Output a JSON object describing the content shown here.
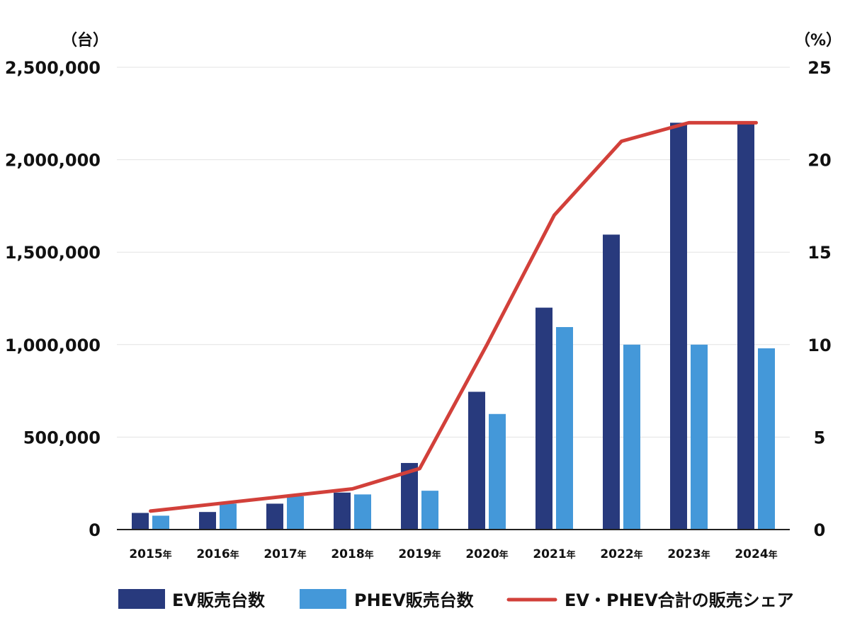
{
  "chart_data": {
    "type": "bar",
    "categories": [
      "2015",
      "2016",
      "2017",
      "2018",
      "2019",
      "2020",
      "2021",
      "2022",
      "2023",
      "2024"
    ],
    "category_suffix": "年",
    "series": [
      {
        "name": "EV販売台数",
        "kind": "bar",
        "axis": "left",
        "color": "#283a7d",
        "values": [
          90000,
          95000,
          140000,
          200000,
          360000,
          745000,
          1200000,
          1595000,
          2200000,
          2200000
        ]
      },
      {
        "name": "PHEV販売台数",
        "kind": "bar",
        "axis": "left",
        "color": "#4498d9",
        "values": [
          75000,
          140000,
          180000,
          190000,
          210000,
          625000,
          1095000,
          1000000,
          1000000,
          980000
        ]
      },
      {
        "name": "EV・PHEV合計の販売シェア",
        "kind": "line",
        "axis": "right",
        "color": "#d2403a",
        "values": [
          1.0,
          1.4,
          1.8,
          2.2,
          3.3,
          10.0,
          17.0,
          21.0,
          22.0,
          22.0
        ]
      }
    ],
    "y_left": {
      "unit": "（台）",
      "min": 0,
      "max": 2500000,
      "ticks": [
        0,
        500000,
        1000000,
        1500000,
        2000000,
        2500000
      ],
      "tick_labels": [
        "0",
        "500,000",
        "1,000,000",
        "1,500,000",
        "2,000,000",
        "2,500,000"
      ]
    },
    "y_right": {
      "unit": "（%）",
      "min": 0,
      "max": 25,
      "ticks": [
        0,
        5,
        10,
        15,
        20,
        25
      ],
      "tick_labels": [
        "0",
        "5",
        "10",
        "15",
        "20",
        "25"
      ]
    },
    "grid": true,
    "legend_position": "bottom"
  }
}
